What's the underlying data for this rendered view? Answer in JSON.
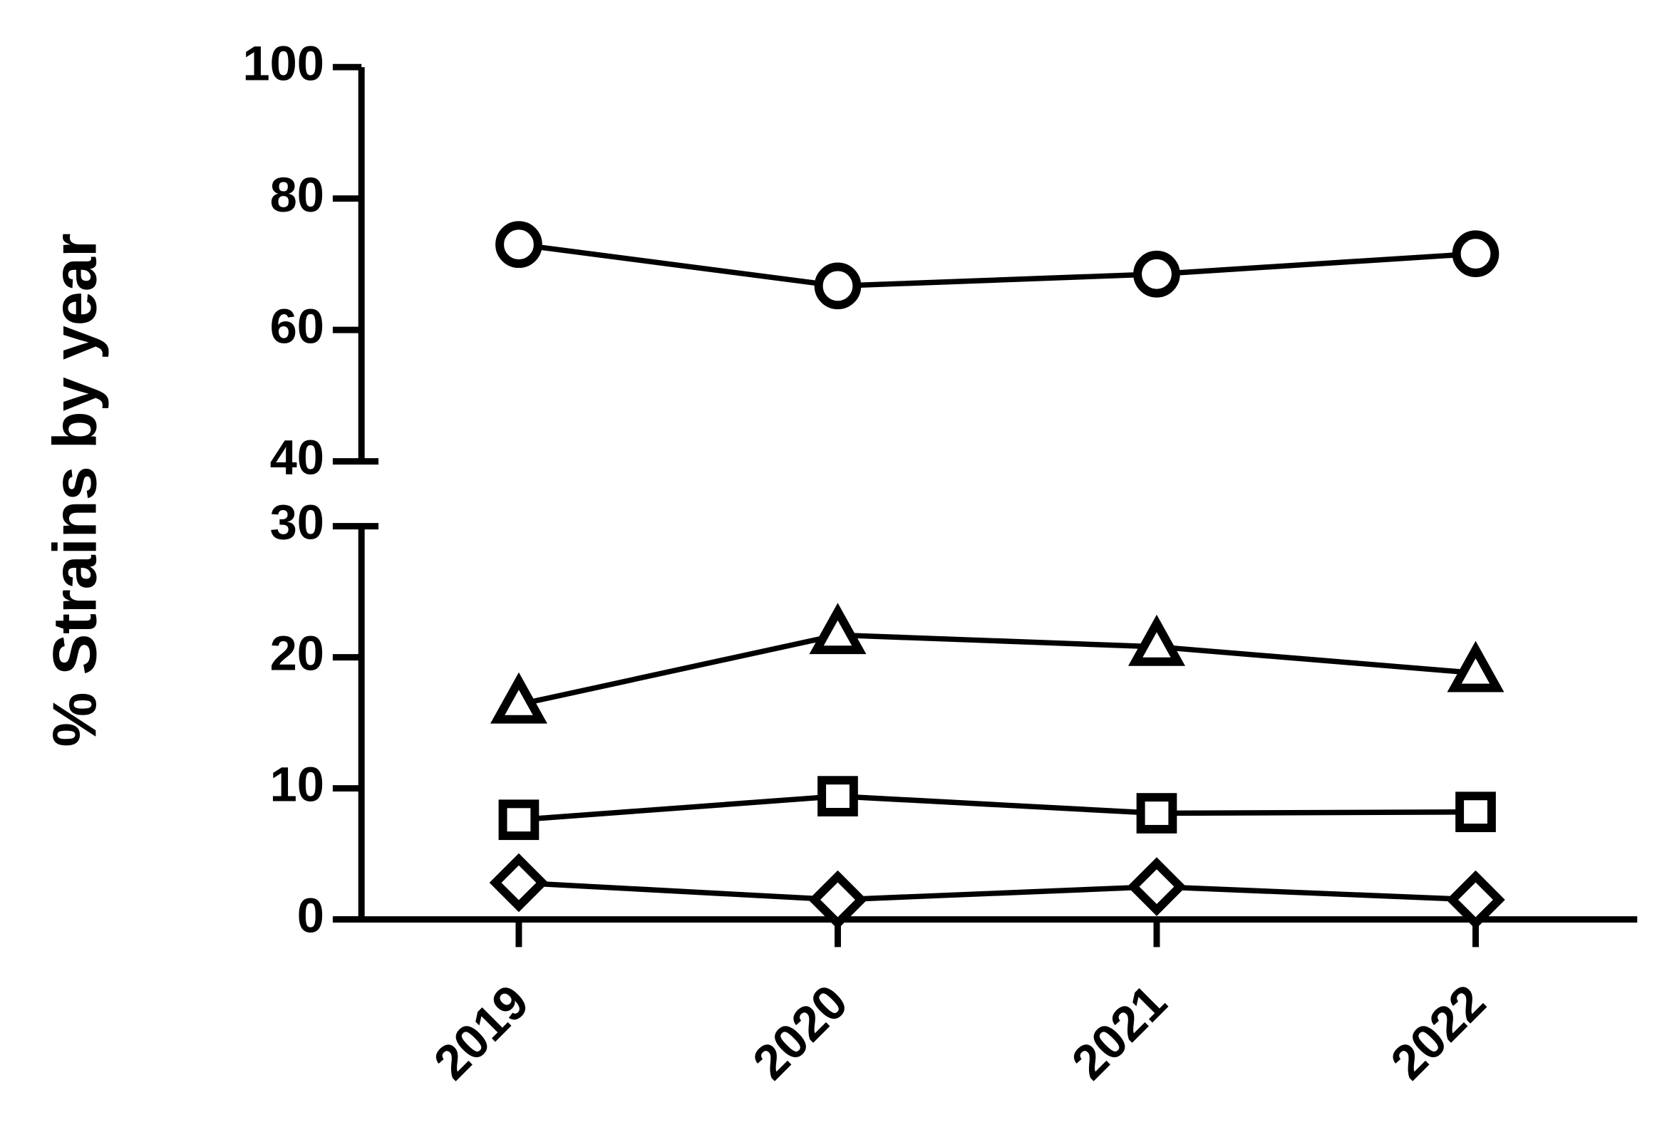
{
  "chart_data": {
    "type": "line",
    "y_label": "% Strains by year",
    "categories": [
      "2019",
      "2020",
      "2021",
      "2022"
    ],
    "y_segments": [
      {
        "ylim": [
          0,
          30
        ],
        "yticks": [
          0,
          10,
          20,
          30
        ]
      },
      {
        "ylim": [
          40,
          100
        ],
        "yticks": [
          40,
          60,
          80,
          100
        ]
      }
    ],
    "series": [
      {
        "marker": "circle",
        "color": "#000000",
        "values": [
          73,
          66.7,
          68.5,
          71.6
        ]
      },
      {
        "marker": "triangle",
        "color": "#000000",
        "values": [
          16.4,
          21.7,
          20.8,
          18.8
        ]
      },
      {
        "marker": "square",
        "color": "#000000",
        "values": [
          7.6,
          9.4,
          8.1,
          8.2
        ]
      },
      {
        "marker": "diamond",
        "color": "#000000",
        "values": [
          2.8,
          1.5,
          2.5,
          1.5
        ]
      }
    ]
  }
}
